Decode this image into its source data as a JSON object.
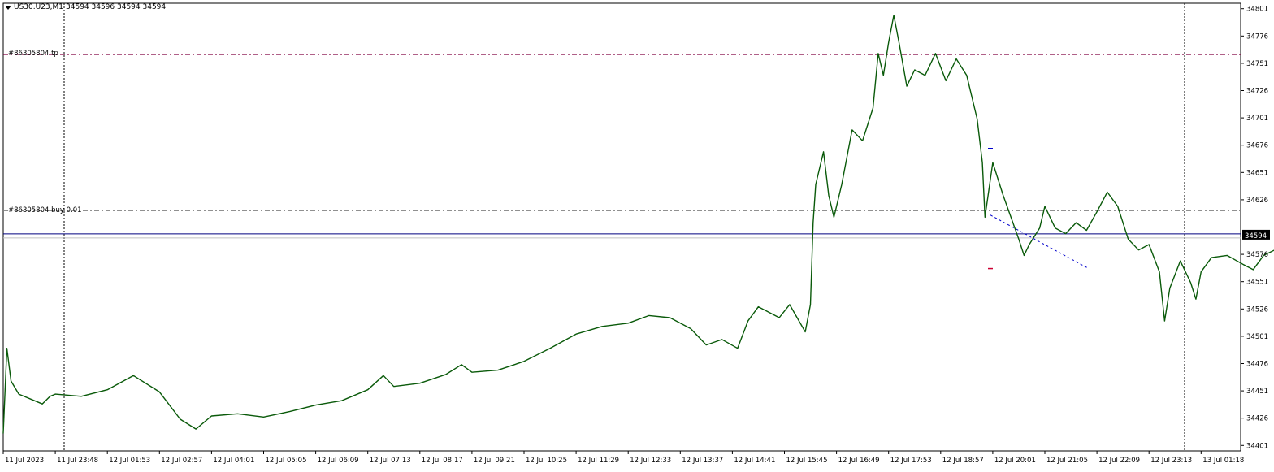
{
  "header": {
    "symbol": "US30.U23,M1",
    "ohlc": "34594 34596 34594 34594"
  },
  "orders": {
    "tp_label": "#86305804 tp",
    "buy_label": "#86305804 buy 0.01"
  },
  "colors": {
    "price_line": "#0a5a0a",
    "tp_line": "#800040",
    "buy_line": "#808080",
    "bid_line": "#000080",
    "ask_line": "#c0c0c0",
    "axis": "#000000",
    "current_badge": "#000000",
    "marker_blue": "#0000cc",
    "marker_red": "#cc0033"
  },
  "chart_data": {
    "type": "line",
    "title": "US30.U23,M1",
    "xlabel": "",
    "ylabel": "",
    "grid": false,
    "ylim": [
      34396,
      34806
    ],
    "y_ticks": [
      34801,
      34776,
      34751,
      34726,
      34701,
      34676,
      34651,
      34626,
      34576,
      34551,
      34526,
      34501,
      34476,
      34451,
      34426,
      34401
    ],
    "x_ticks": [
      "11 Jul 2023",
      "11 Jul 23:48",
      "12 Jul 01:53",
      "12 Jul 02:57",
      "12 Jul 04:01",
      "12 Jul 05:05",
      "12 Jul 06:09",
      "12 Jul 07:13",
      "12 Jul 08:17",
      "12 Jul 09:21",
      "12 Jul 10:25",
      "12 Jul 11:29",
      "12 Jul 12:33",
      "12 Jul 13:37",
      "12 Jul 14:41",
      "12 Jul 15:45",
      "12 Jul 16:49",
      "12 Jul 17:53",
      "12 Jul 18:57",
      "12 Jul 20:01",
      "12 Jul 21:05",
      "12 Jul 22:09",
      "12 Jul 23:13",
      "13 Jul 01:18"
    ],
    "current_price": 34594,
    "current_price_label": "34594",
    "levels": [
      {
        "name": "#86305804 tp",
        "value": 34759
      },
      {
        "name": "#86305804 buy 0.01",
        "value": 34616
      }
    ],
    "series": [
      {
        "points": [
          [
            0,
            34412
          ],
          [
            0.07,
            34490
          ],
          [
            0.15,
            34460
          ],
          [
            0.3,
            34448
          ],
          [
            0.6,
            34442
          ],
          [
            0.75,
            34439
          ],
          [
            0.9,
            34446
          ],
          [
            1.0,
            34448
          ],
          [
            1.5,
            34446
          ],
          [
            2.0,
            34452
          ],
          [
            2.5,
            34465
          ],
          [
            3.0,
            34450
          ],
          [
            3.4,
            34425
          ],
          [
            3.7,
            34416
          ],
          [
            4.0,
            34428
          ],
          [
            4.5,
            34430
          ],
          [
            5.0,
            34427
          ],
          [
            5.5,
            34432
          ],
          [
            6.0,
            34438
          ],
          [
            6.5,
            34442
          ],
          [
            7.0,
            34452
          ],
          [
            7.3,
            34465
          ],
          [
            7.5,
            34455
          ],
          [
            8.0,
            34458
          ],
          [
            8.5,
            34466
          ],
          [
            8.8,
            34475
          ],
          [
            9.0,
            34468
          ],
          [
            9.5,
            34470
          ],
          [
            10.0,
            34478
          ],
          [
            10.5,
            34490
          ],
          [
            11.0,
            34503
          ],
          [
            11.5,
            34510
          ],
          [
            12.0,
            34513
          ],
          [
            12.4,
            34520
          ],
          [
            12.8,
            34518
          ],
          [
            13.2,
            34508
          ],
          [
            13.5,
            34493
          ],
          [
            13.8,
            34498
          ],
          [
            14.1,
            34490
          ],
          [
            14.3,
            34515
          ],
          [
            14.5,
            34528
          ],
          [
            14.9,
            34518
          ],
          [
            15.1,
            34530
          ],
          [
            15.4,
            34505
          ],
          [
            15.5,
            34530
          ],
          [
            15.55,
            34605
          ],
          [
            15.6,
            34640
          ],
          [
            15.75,
            34670
          ],
          [
            15.85,
            34630
          ],
          [
            15.95,
            34610
          ],
          [
            16.1,
            34640
          ],
          [
            16.3,
            34690
          ],
          [
            16.5,
            34680
          ],
          [
            16.7,
            34710
          ],
          [
            16.8,
            34760
          ],
          [
            16.9,
            34740
          ],
          [
            17.0,
            34770
          ],
          [
            17.1,
            34795
          ],
          [
            17.2,
            34770
          ],
          [
            17.35,
            34730
          ],
          [
            17.5,
            34745
          ],
          [
            17.7,
            34740
          ],
          [
            17.9,
            34760
          ],
          [
            18.1,
            34735
          ],
          [
            18.3,
            34755
          ],
          [
            18.5,
            34740
          ],
          [
            18.7,
            34700
          ],
          [
            18.8,
            34660
          ],
          [
            18.85,
            34610
          ],
          [
            19.0,
            34660
          ],
          [
            19.2,
            34630
          ],
          [
            19.35,
            34610
          ],
          [
            19.5,
            34590
          ],
          [
            19.6,
            34575
          ],
          [
            19.7,
            34585
          ],
          [
            19.9,
            34600
          ],
          [
            20.0,
            34620
          ],
          [
            20.2,
            34600
          ],
          [
            20.4,
            34595
          ],
          [
            20.6,
            34605
          ],
          [
            20.8,
            34598
          ],
          [
            21.0,
            34615
          ],
          [
            21.2,
            34633
          ],
          [
            21.4,
            34620
          ],
          [
            21.6,
            34590
          ],
          [
            21.8,
            34580
          ],
          [
            22.0,
            34585
          ],
          [
            22.2,
            34560
          ],
          [
            22.3,
            34515
          ],
          [
            22.4,
            34545
          ],
          [
            22.6,
            34570
          ],
          [
            22.8,
            34550
          ],
          [
            22.9,
            34535
          ],
          [
            23.0,
            34560
          ],
          [
            23.2,
            34573
          ],
          [
            23.5,
            34575
          ],
          [
            23.8,
            34567
          ],
          [
            24.0,
            34562
          ],
          [
            24.2,
            34575
          ],
          [
            24.5,
            34582
          ],
          [
            24.7,
            34585
          ],
          [
            24.9,
            34578
          ],
          [
            25.0,
            34574
          ]
        ]
      }
    ]
  }
}
